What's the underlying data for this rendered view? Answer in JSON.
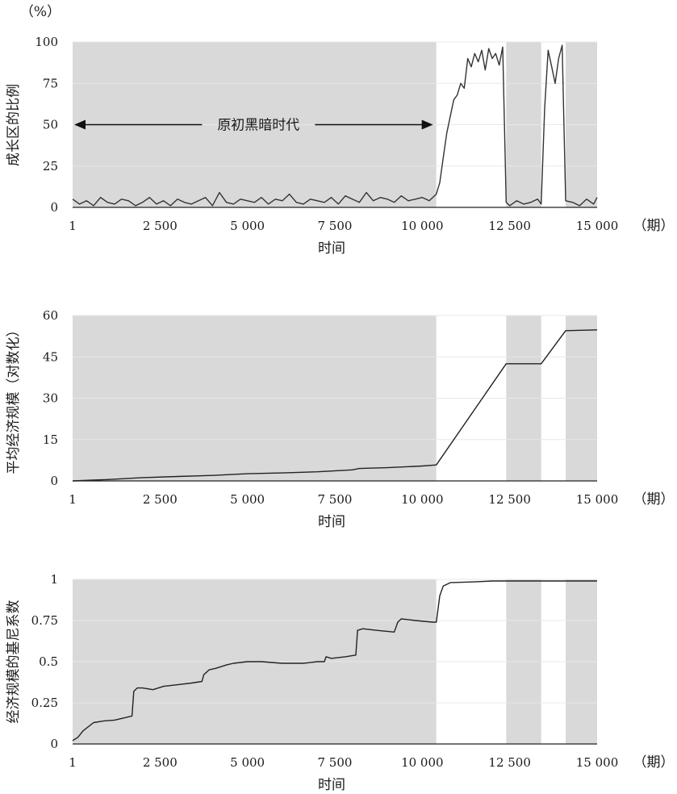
{
  "chart_data": [
    {
      "type": "line",
      "ylabel": "成长区的比例",
      "yunit": "（%）",
      "xlabel": "时间",
      "xunit": "（期）",
      "xlim": [
        1,
        15000
      ],
      "ylim": [
        0,
        100
      ],
      "xticks": [
        {
          "value": 1,
          "label": "1"
        },
        {
          "value": 2500,
          "label": "2 500"
        },
        {
          "value": 5000,
          "label": "5 000"
        },
        {
          "value": 7500,
          "label": "7 500"
        },
        {
          "value": 10000,
          "label": "10 000"
        },
        {
          "value": 12500,
          "label": "12 500"
        },
        {
          "value": 15000,
          "label": "15 000"
        }
      ],
      "yticks": [
        {
          "value": 0,
          "label": "0"
        },
        {
          "value": 25,
          "label": "25"
        },
        {
          "value": 50,
          "label": "50"
        },
        {
          "value": 75,
          "label": "75"
        },
        {
          "value": 100,
          "label": "100"
        }
      ],
      "grid": true,
      "shaded_periods": [
        [
          1,
          10400
        ],
        [
          12400,
          13400
        ],
        [
          14100,
          15000
        ]
      ],
      "shade_color": "#d9d9d9",
      "line_color": "#333333",
      "annotation": {
        "text": "原初黑暗时代",
        "from": 1,
        "to": 10400,
        "y": 50
      },
      "x": [
        1,
        200,
        400,
        600,
        800,
        1000,
        1200,
        1400,
        1600,
        1800,
        2000,
        2200,
        2400,
        2600,
        2800,
        3000,
        3200,
        3400,
        3600,
        3800,
        4000,
        4200,
        4400,
        4600,
        4800,
        5000,
        5200,
        5400,
        5600,
        5800,
        6000,
        6200,
        6400,
        6600,
        6800,
        7000,
        7200,
        7400,
        7600,
        7800,
        8000,
        8200,
        8400,
        8600,
        8800,
        9000,
        9200,
        9400,
        9600,
        9800,
        10000,
        10200,
        10400,
        10500,
        10600,
        10700,
        10800,
        10900,
        11000,
        11100,
        11200,
        11300,
        11400,
        11500,
        11600,
        11700,
        11800,
        11900,
        12000,
        12100,
        12200,
        12300,
        12400,
        12500,
        12700,
        12900,
        13100,
        13300,
        13400,
        13500,
        13600,
        13700,
        13800,
        13900,
        14000,
        14100,
        14300,
        14500,
        14700,
        14900,
        15000
      ],
      "values": [
        5,
        2,
        4,
        1,
        6,
        3,
        2,
        5,
        4,
        1,
        3,
        6,
        2,
        4,
        1,
        5,
        3,
        2,
        4,
        6,
        1,
        9,
        3,
        2,
        5,
        4,
        3,
        6,
        2,
        5,
        4,
        8,
        3,
        2,
        5,
        4,
        3,
        6,
        2,
        7,
        5,
        3,
        9,
        4,
        6,
        5,
        3,
        7,
        4,
        5,
        6,
        4,
        8,
        15,
        30,
        45,
        55,
        65,
        68,
        75,
        72,
        90,
        85,
        93,
        88,
        95,
        83,
        96,
        90,
        93,
        86,
        97,
        3,
        1,
        4,
        2,
        3,
        5,
        2,
        60,
        95,
        85,
        75,
        90,
        98,
        4,
        3,
        1,
        5,
        2,
        6
      ]
    },
    {
      "type": "line",
      "ylabel": "平均经济规模（对数化）",
      "xlabel": "时间",
      "xunit": "（期）",
      "xlim": [
        1,
        15000
      ],
      "ylim": [
        0,
        60
      ],
      "xticks": [
        {
          "value": 1,
          "label": "1"
        },
        {
          "value": 2500,
          "label": "2 500"
        },
        {
          "value": 5000,
          "label": "5 000"
        },
        {
          "value": 7500,
          "label": "7 500"
        },
        {
          "value": 10000,
          "label": "10 000"
        },
        {
          "value": 12500,
          "label": "12 500"
        },
        {
          "value": 15000,
          "label": "15 000"
        }
      ],
      "yticks": [
        {
          "value": 0,
          "label": "0"
        },
        {
          "value": 15,
          "label": "15"
        },
        {
          "value": 30,
          "label": "30"
        },
        {
          "value": 45,
          "label": "45"
        },
        {
          "value": 60,
          "label": "60"
        }
      ],
      "grid": true,
      "shaded_periods": [
        [
          1,
          10400
        ],
        [
          12400,
          13400
        ],
        [
          14100,
          15000
        ]
      ],
      "shade_color": "#d9d9d9",
      "line_color": "#222222",
      "x": [
        1,
        1000,
        2000,
        3000,
        4000,
        5000,
        6000,
        7000,
        8000,
        8200,
        9000,
        10000,
        10400,
        12400,
        13400,
        14100,
        15000
      ],
      "values": [
        0,
        0.5,
        1.2,
        1.6,
        2.0,
        2.6,
        2.9,
        3.3,
        4.0,
        4.5,
        4.8,
        5.4,
        5.8,
        42.5,
        42.5,
        54.5,
        54.8
      ]
    },
    {
      "type": "line",
      "ylabel": "经济规模的基尼系数",
      "xlabel": "时间",
      "xunit": "（期）",
      "xlim": [
        1,
        15000
      ],
      "ylim": [
        0,
        1
      ],
      "xticks": [
        {
          "value": 1,
          "label": "1"
        },
        {
          "value": 2500,
          "label": "2 500"
        },
        {
          "value": 5000,
          "label": "5 000"
        },
        {
          "value": 7500,
          "label": "7 500"
        },
        {
          "value": 10000,
          "label": "10 000"
        },
        {
          "value": 12500,
          "label": "12 500"
        },
        {
          "value": 15000,
          "label": "15 000"
        }
      ],
      "yticks": [
        {
          "value": 0,
          "label": "0"
        },
        {
          "value": 0.25,
          "label": "0.25"
        },
        {
          "value": 0.5,
          "label": "0.5"
        },
        {
          "value": 0.75,
          "label": "0.75"
        },
        {
          "value": 1,
          "label": "1"
        }
      ],
      "grid": true,
      "shaded_periods": [
        [
          1,
          10400
        ],
        [
          12400,
          13400
        ],
        [
          14100,
          15000
        ]
      ],
      "shade_color": "#d9d9d9",
      "line_color": "#222222",
      "x": [
        1,
        150,
        300,
        600,
        900,
        1200,
        1500,
        1700,
        1750,
        1850,
        2000,
        2300,
        2600,
        3000,
        3400,
        3700,
        3750,
        3900,
        4100,
        4400,
        4600,
        5000,
        5400,
        6000,
        6600,
        7000,
        7200,
        7250,
        7400,
        7800,
        8100,
        8150,
        8300,
        8700,
        9200,
        9300,
        9400,
        9800,
        10300,
        10400,
        10500,
        10600,
        10800,
        11500,
        12000,
        13000,
        14000,
        15000
      ],
      "values": [
        0.02,
        0.04,
        0.08,
        0.13,
        0.14,
        0.145,
        0.16,
        0.17,
        0.32,
        0.34,
        0.34,
        0.33,
        0.35,
        0.36,
        0.37,
        0.38,
        0.42,
        0.45,
        0.46,
        0.48,
        0.49,
        0.5,
        0.5,
        0.49,
        0.49,
        0.5,
        0.5,
        0.53,
        0.52,
        0.53,
        0.54,
        0.69,
        0.7,
        0.69,
        0.68,
        0.74,
        0.76,
        0.75,
        0.74,
        0.74,
        0.9,
        0.96,
        0.98,
        0.985,
        0.99,
        0.99,
        0.99,
        0.99
      ]
    }
  ]
}
